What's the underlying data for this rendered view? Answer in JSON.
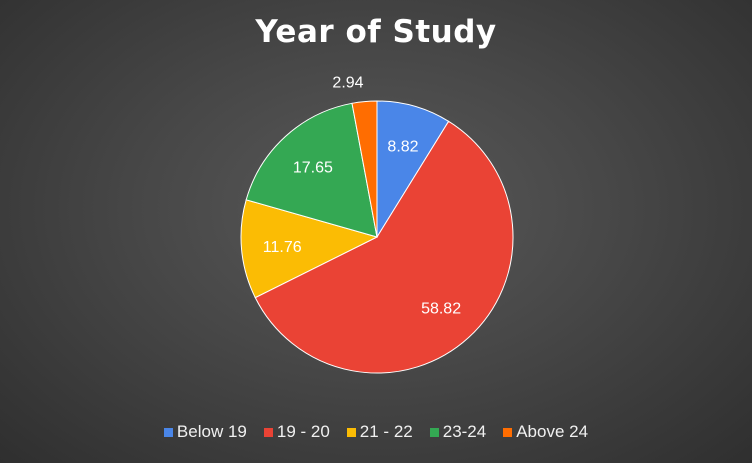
{
  "chart_data": {
    "type": "pie",
    "title": "Year of Study",
    "slices": [
      {
        "label": "Below 19",
        "value": 8.82,
        "value_label": "8.82",
        "color": "#4a86e8"
      },
      {
        "label": "19 - 20",
        "value": 58.82,
        "value_label": "58.82",
        "color": "#ea4335"
      },
      {
        "label": "21 - 22",
        "value": 11.76,
        "value_label": "11.76",
        "color": "#fbbc04"
      },
      {
        "label": "23-24",
        "value": 17.65,
        "value_label": "17.65",
        "color": "#34a853"
      },
      {
        "label": "Above 24",
        "value": 2.94,
        "value_label": "2.94",
        "color": "#ff6d01"
      }
    ],
    "legend_position": "bottom"
  }
}
